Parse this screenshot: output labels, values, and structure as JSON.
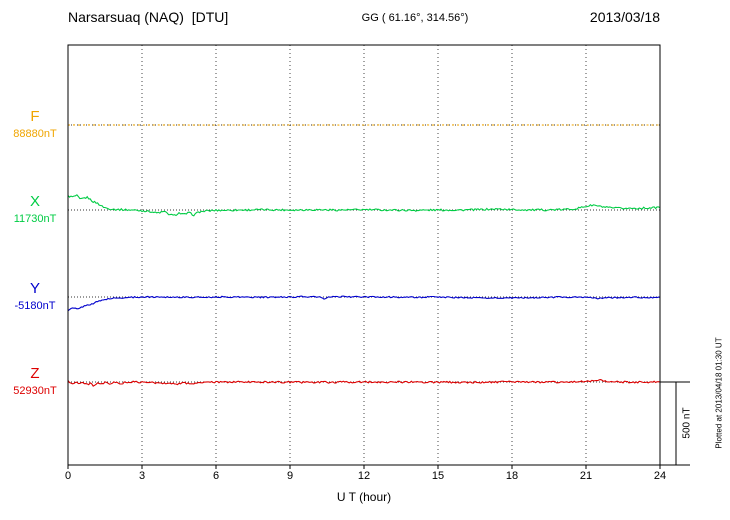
{
  "header": {
    "title": "Narsarsuaq (NAQ)  [DTU]",
    "coords": "GG ( 61.16°, 314.56°)",
    "date": "2013/03/18"
  },
  "axis": {
    "xlabel": "U T (hour)",
    "ticks": [
      "0",
      "3",
      "6",
      "9",
      "12",
      "15",
      "18",
      "21",
      "24"
    ]
  },
  "scale_bar": {
    "label": "500 nT",
    "nT": 500
  },
  "plot_note": "Plotted at 2013/04/18 01:30 UT",
  "chart_data": {
    "type": "line",
    "x_unit": "hour",
    "x_range": [
      0,
      24
    ],
    "x_ticks": [
      0,
      3,
      6,
      9,
      12,
      15,
      18,
      21,
      24
    ],
    "xlabel": "U T (hour)",
    "grid": "vertical-dotted-every-3h",
    "legend_position": "left-margin",
    "value_encoding": "keypoints are [hour, deviation_nT_from_channel_baseline]; scale bar = 500 nT",
    "series": [
      {
        "name": "F",
        "value_label": "88880nT",
        "baseline_nT": 88880,
        "color": "#f0a500",
        "dashed": true,
        "noise_nT": 1.5,
        "keypoints": [
          [
            0,
            0
          ],
          [
            24,
            0
          ]
        ]
      },
      {
        "name": "X",
        "value_label": "11730nT",
        "baseline_nT": 11730,
        "color": "#00cc44",
        "dashed": false,
        "noise_nT": 11,
        "keypoints": [
          [
            0,
            84
          ],
          [
            0.2,
            78
          ],
          [
            0.35,
            88
          ],
          [
            0.5,
            62
          ],
          [
            0.65,
            72
          ],
          [
            0.8,
            76
          ],
          [
            1.0,
            52
          ],
          [
            1.2,
            40
          ],
          [
            1.4,
            20
          ],
          [
            1.6,
            9
          ],
          [
            1.9,
            4
          ],
          [
            2.2,
            2
          ],
          [
            2.6,
            0
          ],
          [
            3.0,
            -4
          ],
          [
            3.3,
            -8
          ],
          [
            3.6,
            -18
          ],
          [
            3.9,
            -10
          ],
          [
            4.1,
            -26
          ],
          [
            4.3,
            -34
          ],
          [
            4.5,
            -18
          ],
          [
            4.7,
            -28
          ],
          [
            4.9,
            -16
          ],
          [
            5.1,
            -30
          ],
          [
            5.3,
            -12
          ],
          [
            5.6,
            -6
          ],
          [
            6.0,
            -2
          ],
          [
            7,
            0
          ],
          [
            8,
            2
          ],
          [
            9,
            0
          ],
          [
            10,
            2
          ],
          [
            11,
            0
          ],
          [
            12,
            2
          ],
          [
            13,
            0
          ],
          [
            14,
            -2
          ],
          [
            15,
            0
          ],
          [
            16,
            0
          ],
          [
            17,
            4
          ],
          [
            17.5,
            6
          ],
          [
            18,
            2
          ],
          [
            19,
            0
          ],
          [
            20,
            2
          ],
          [
            20.6,
            8
          ],
          [
            21,
            22
          ],
          [
            21.3,
            30
          ],
          [
            21.6,
            20
          ],
          [
            22,
            12
          ],
          [
            22.5,
            10
          ],
          [
            23,
            10
          ],
          [
            23.5,
            12
          ],
          [
            24,
            16
          ]
        ]
      },
      {
        "name": "Y",
        "value_label": "-5180nT",
        "baseline_nT": -5180,
        "color": "#0000cc",
        "dashed": false,
        "noise_nT": 8,
        "keypoints": [
          [
            0,
            -80
          ],
          [
            0.2,
            -66
          ],
          [
            0.4,
            -74
          ],
          [
            0.6,
            -58
          ],
          [
            0.8,
            -48
          ],
          [
            1.0,
            -40
          ],
          [
            1.2,
            -28
          ],
          [
            1.5,
            -14
          ],
          [
            1.8,
            -8
          ],
          [
            2.1,
            -6
          ],
          [
            2.5,
            -2
          ],
          [
            3,
            0
          ],
          [
            4,
            0
          ],
          [
            5,
            -2
          ],
          [
            6,
            0
          ],
          [
            7,
            0
          ],
          [
            8,
            -2
          ],
          [
            9,
            0
          ],
          [
            9.5,
            2
          ],
          [
            10.2,
            0
          ],
          [
            10.4,
            -14
          ],
          [
            10.6,
            0
          ],
          [
            11,
            2
          ],
          [
            12,
            0
          ],
          [
            13,
            0
          ],
          [
            14,
            -2
          ],
          [
            15,
            0
          ],
          [
            16,
            -4
          ],
          [
            17,
            -6
          ],
          [
            18,
            -6
          ],
          [
            19,
            -4
          ],
          [
            20,
            0
          ],
          [
            21,
            -2
          ],
          [
            21.5,
            -8
          ],
          [
            22,
            -4
          ],
          [
            23,
            -2
          ],
          [
            24,
            -4
          ]
        ]
      },
      {
        "name": "Z",
        "value_label": "52930nT",
        "baseline_nT": 52930,
        "color": "#dd0000",
        "dashed": false,
        "noise_nT": 11,
        "keypoints": [
          [
            0,
            8
          ],
          [
            0.15,
            -14
          ],
          [
            0.3,
            2
          ],
          [
            0.45,
            -10
          ],
          [
            0.6,
            -2
          ],
          [
            0.75,
            -18
          ],
          [
            0.9,
            -6
          ],
          [
            1.05,
            -24
          ],
          [
            1.2,
            -10
          ],
          [
            1.35,
            -16
          ],
          [
            1.5,
            -4
          ],
          [
            1.7,
            -12
          ],
          [
            1.9,
            -2
          ],
          [
            2.1,
            -10
          ],
          [
            2.3,
            -4
          ],
          [
            2.6,
            0
          ],
          [
            3,
            -2
          ],
          [
            3.5,
            -4
          ],
          [
            3.8,
            -10
          ],
          [
            4.1,
            -4
          ],
          [
            4.4,
            -12
          ],
          [
            4.7,
            -6
          ],
          [
            5,
            -10
          ],
          [
            5.3,
            -4
          ],
          [
            5.8,
            -2
          ],
          [
            6.5,
            0
          ],
          [
            8,
            0
          ],
          [
            10,
            -2
          ],
          [
            12,
            0
          ],
          [
            14,
            0
          ],
          [
            16,
            -2
          ],
          [
            18,
            0
          ],
          [
            20,
            0
          ],
          [
            20.8,
            2
          ],
          [
            21.2,
            8
          ],
          [
            21.5,
            12
          ],
          [
            21.8,
            4
          ],
          [
            22.2,
            0
          ],
          [
            23,
            0
          ],
          [
            24,
            0
          ]
        ]
      }
    ]
  }
}
